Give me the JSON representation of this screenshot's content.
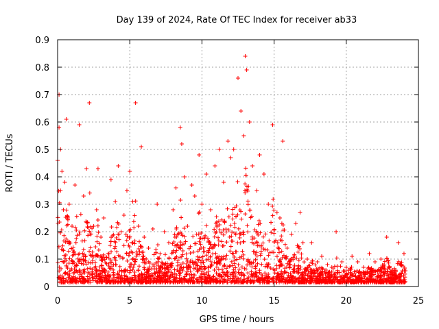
{
  "chart_data": {
    "type": "scatter",
    "title": "Day 139 of 2024, Rate Of TEC Index for receiver ab33",
    "xlabel": "GPS time / hours",
    "ylabel": "ROTI / TECUs",
    "xlim": [
      0,
      25
    ],
    "ylim": [
      0,
      0.9
    ],
    "xticks": [
      "0",
      "5",
      "10",
      "15",
      "20",
      "25"
    ],
    "yticks": [
      "0",
      "0.1",
      "0.2",
      "0.3",
      "0.4",
      "0.5",
      "0.6",
      "0.7",
      "0.8",
      "0.9"
    ],
    "grid": true,
    "marker": "+",
    "color": "#ff0000",
    "series": [
      {
        "x": [
          0.0,
          0.1,
          0.1,
          0.2,
          0.2,
          0.3,
          0.4,
          0.5,
          0.6,
          0.8,
          1.0,
          1.2,
          1.5,
          1.8,
          2.0,
          2.2,
          2.5,
          2.7,
          2.8,
          3.0,
          3.2,
          3.5,
          3.7,
          4.0,
          4.2,
          4.4,
          4.6,
          4.8,
          5.0,
          5.2,
          5.4,
          5.6,
          5.8,
          6.0,
          6.3,
          6.6,
          6.9,
          7.1,
          7.4,
          7.7,
          8.0,
          8.2,
          8.5,
          8.6,
          8.8,
          9.0,
          9.3,
          9.5,
          9.8,
          10.0,
          10.3,
          10.6,
          10.9,
          11.2,
          11.5,
          11.8,
          12.0,
          12.2,
          12.5,
          12.7,
          12.9,
          13.0,
          13.1,
          13.3,
          13.5,
          13.8,
          14.0,
          14.3,
          14.6,
          14.9,
          15.2,
          15.4,
          15.6,
          15.9,
          16.2,
          16.5,
          16.8,
          17.0,
          17.3,
          17.6,
          18.0,
          18.3,
          18.7,
          19.0,
          19.3,
          19.7,
          20.0,
          20.4,
          20.8,
          21.2,
          21.6,
          22.0,
          22.4,
          22.8,
          23.2,
          23.6,
          24.0
        ],
        "y": [
          0.46,
          0.7,
          0.58,
          0.5,
          0.35,
          0.42,
          0.28,
          0.38,
          0.61,
          0.3,
          0.22,
          0.37,
          0.59,
          0.33,
          0.43,
          0.67,
          0.22,
          0.28,
          0.43,
          0.18,
          0.25,
          0.12,
          0.39,
          0.31,
          0.44,
          0.2,
          0.26,
          0.35,
          0.42,
          0.31,
          0.67,
          0.22,
          0.51,
          0.18,
          0.14,
          0.21,
          0.3,
          0.12,
          0.2,
          0.16,
          0.28,
          0.36,
          0.58,
          0.52,
          0.4,
          0.22,
          0.37,
          0.33,
          0.48,
          0.3,
          0.41,
          0.28,
          0.44,
          0.5,
          0.38,
          0.53,
          0.47,
          0.5,
          0.76,
          0.64,
          0.55,
          0.84,
          0.79,
          0.6,
          0.44,
          0.35,
          0.48,
          0.41,
          0.3,
          0.59,
          0.27,
          0.25,
          0.53,
          0.14,
          0.19,
          0.23,
          0.27,
          0.16,
          0.1,
          0.16,
          0.09,
          0.11,
          0.08,
          0.07,
          0.2,
          0.09,
          0.07,
          0.11,
          0.09,
          0.07,
          0.12,
          0.09,
          0.1,
          0.18,
          0.06,
          0.16,
          0.12
        ]
      }
    ]
  }
}
